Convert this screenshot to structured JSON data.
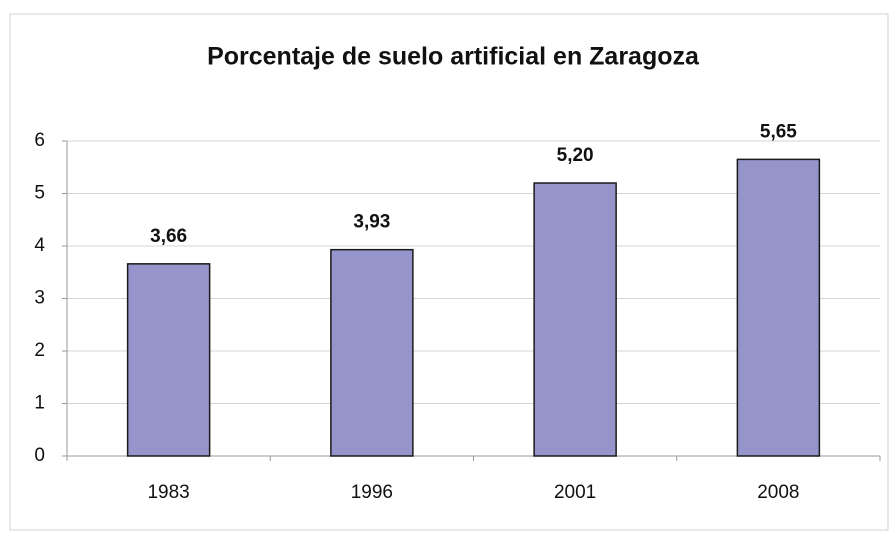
{
  "chart_data": {
    "type": "bar",
    "title": "Porcentaje de suelo artificial en  Zaragoza",
    "categories": [
      "1983",
      "1996",
      "2001",
      "2008"
    ],
    "values": [
      3.66,
      3.93,
      5.2,
      5.65
    ],
    "value_labels": [
      "3,66",
      "3,93",
      "5,20",
      "5,65"
    ],
    "color": "#9595cb",
    "ylim": [
      0,
      6
    ],
    "yticks": [
      0,
      1,
      2,
      3,
      4,
      5,
      6
    ],
    "grid": true
  }
}
